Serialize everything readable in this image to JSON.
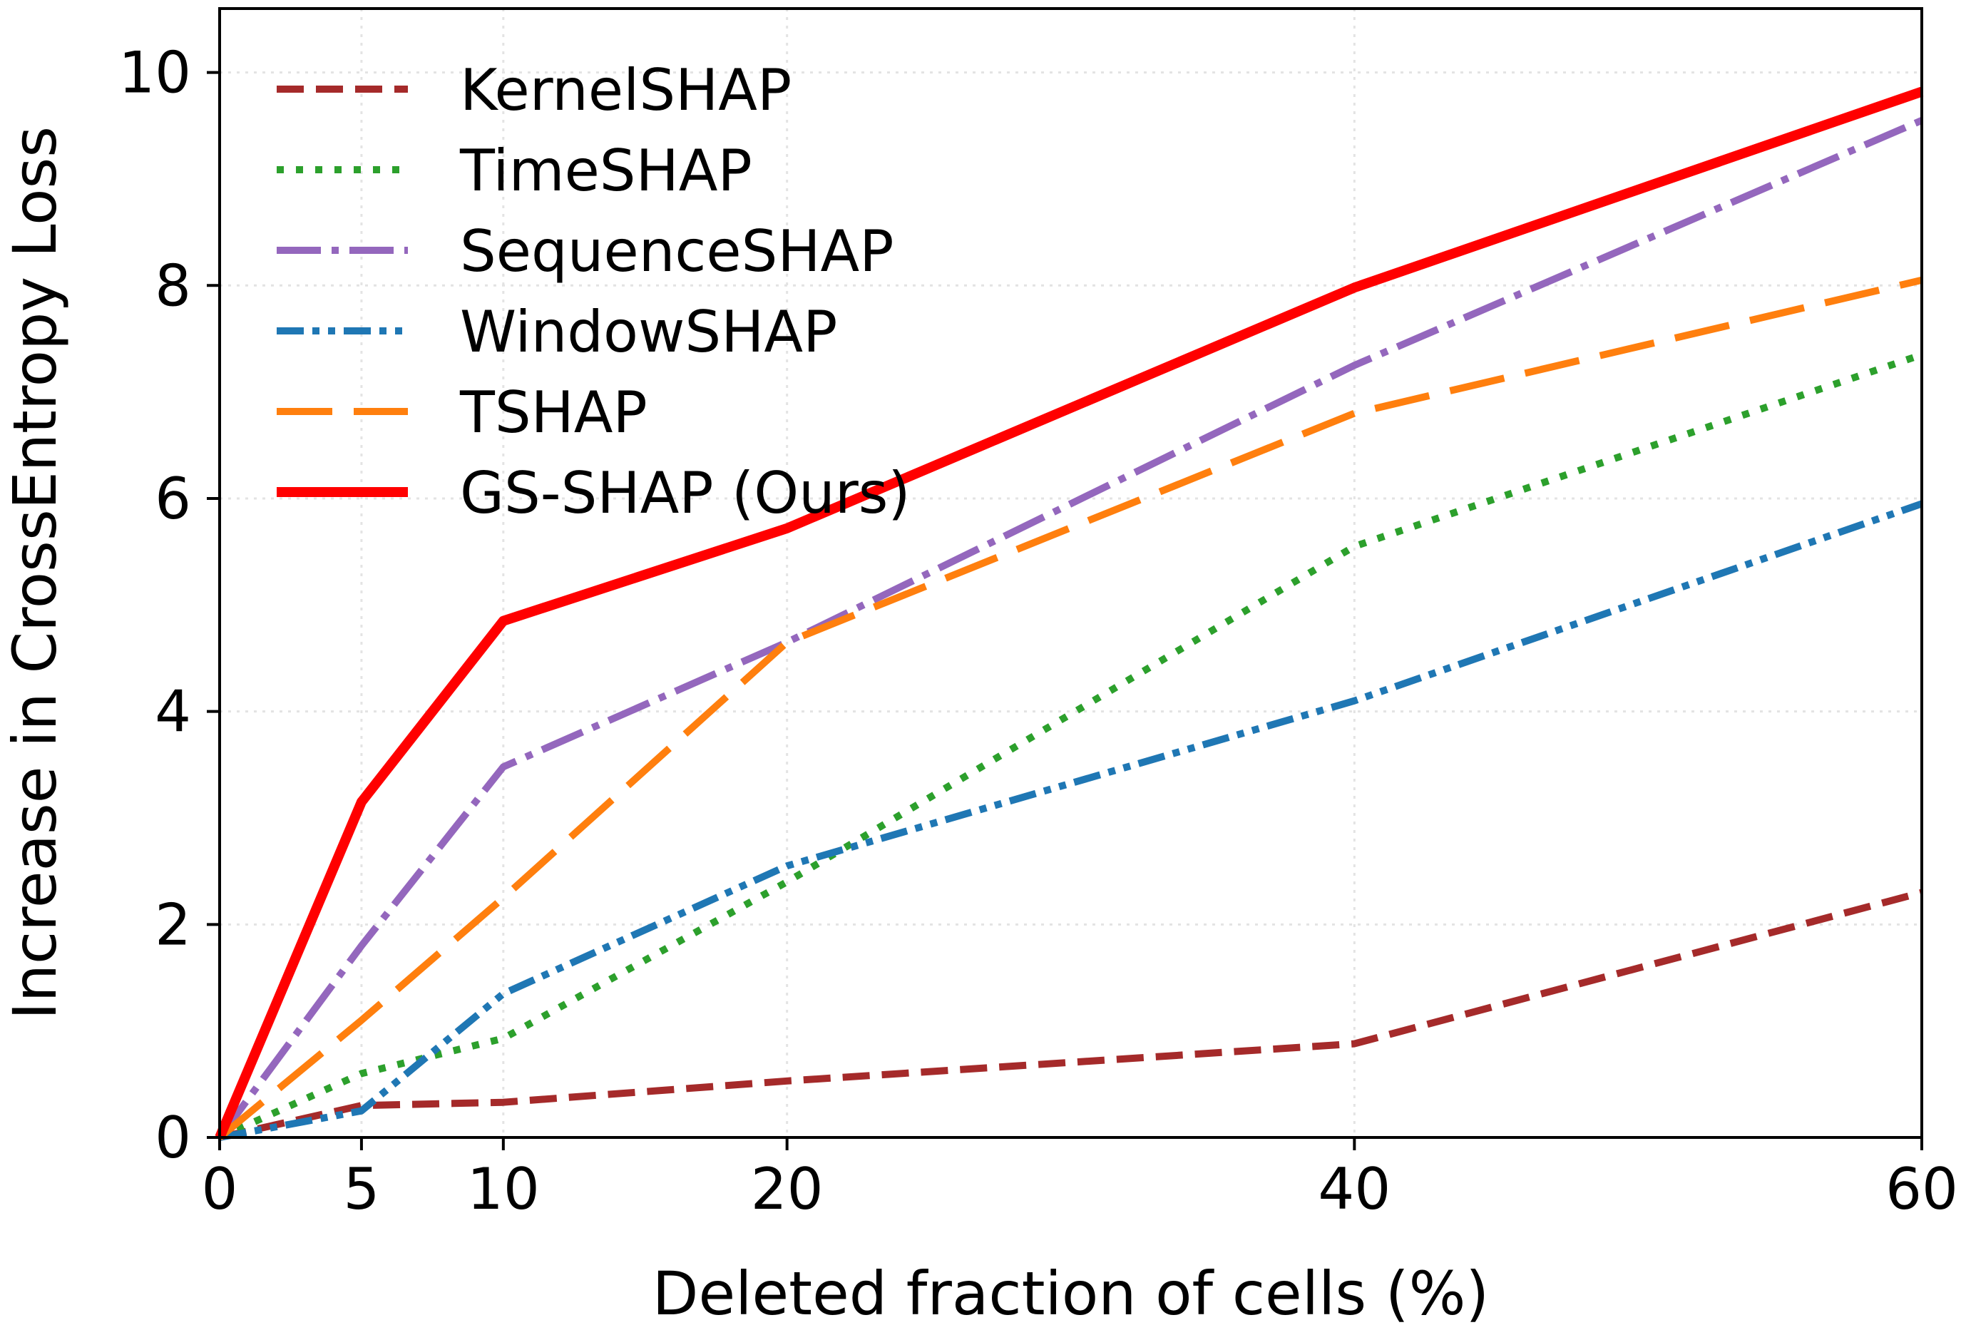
{
  "chart_data": {
    "type": "line",
    "title": "",
    "xlabel": "Deleted fraction of cells (%)",
    "ylabel": "Increase in CrossEntropy Loss",
    "x": [
      0,
      5,
      10,
      20,
      40,
      60
    ],
    "xticks": [
      0,
      5,
      10,
      20,
      40,
      60
    ],
    "xtick_labels": [
      "0",
      "5",
      "10",
      "20",
      "40",
      "60"
    ],
    "yticks": [
      0,
      2,
      4,
      6,
      8,
      10
    ],
    "ytick_labels": [
      "0",
      "2",
      "4",
      "6",
      "8",
      "10"
    ],
    "xlim": [
      0,
      60
    ],
    "ylim": [
      0,
      10.6
    ],
    "grid": true,
    "legend_position": "upper-left",
    "series": [
      {
        "name": "KernelSHAP",
        "values": [
          0,
          0.3,
          0.33,
          0.53,
          0.88,
          2.3
        ],
        "color": "#a52a2a",
        "style": "dashed"
      },
      {
        "name": "TimeSHAP",
        "values": [
          0,
          0.6,
          0.93,
          2.4,
          5.55,
          7.35
        ],
        "color": "#2ca02c",
        "style": "dotted"
      },
      {
        "name": "SequenceSHAP",
        "values": [
          0,
          1.8,
          3.48,
          4.65,
          7.25,
          9.55
        ],
        "color": "#9467bd",
        "style": "dashdot"
      },
      {
        "name": "WindowSHAP",
        "values": [
          0,
          0.25,
          1.35,
          2.55,
          4.1,
          5.95
        ],
        "color": "#1f77b4",
        "style": "dashdotdot"
      },
      {
        "name": "TSHAP",
        "values": [
          0,
          1.1,
          2.25,
          4.65,
          6.8,
          8.05
        ],
        "color": "#ff7f0e",
        "style": "longdash"
      },
      {
        "name": "GS-SHAP (Ours)",
        "values": [
          0,
          3.15,
          4.85,
          5.72,
          7.98,
          9.82
        ],
        "color": "#ff0000",
        "style": "solid"
      }
    ]
  }
}
